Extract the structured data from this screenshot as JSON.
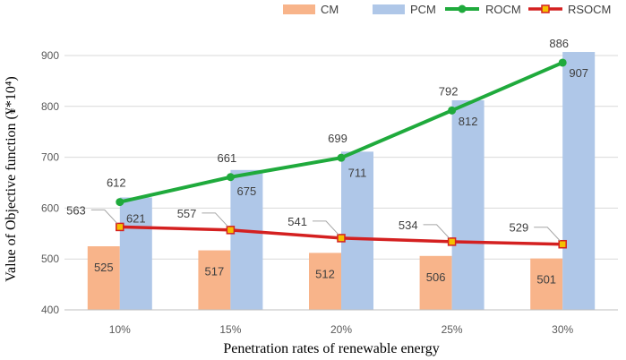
{
  "chart_data": {
    "type": "bar",
    "title": "",
    "xlabel": "Penetration rates of renewable energy",
    "ylabel": "Value of Objective function  (¥*10⁴)",
    "ylim": [
      400,
      900
    ],
    "yticks": [
      400,
      500,
      600,
      700,
      800,
      900
    ],
    "grid": true,
    "legend_position": "top-right",
    "categories": [
      "10%",
      "15%",
      "20%",
      "25%",
      "30%"
    ],
    "series": [
      {
        "name": "CM",
        "kind": "bar",
        "color": "#f8b48a",
        "values": [
          525,
          517,
          512,
          506,
          501
        ]
      },
      {
        "name": "PCM",
        "kind": "bar",
        "color": "#afc7e8",
        "values": [
          621,
          675,
          711,
          812,
          907
        ]
      },
      {
        "name": "ROCM",
        "kind": "line",
        "marker": "circle",
        "color": "#1faa3c",
        "values": [
          612,
          661,
          699,
          792,
          886
        ]
      },
      {
        "name": "RSOCM",
        "kind": "line",
        "marker": "square",
        "color": "#d42020",
        "marker_color": "#f5c000",
        "values": [
          563,
          557,
          541,
          534,
          529
        ]
      }
    ]
  }
}
